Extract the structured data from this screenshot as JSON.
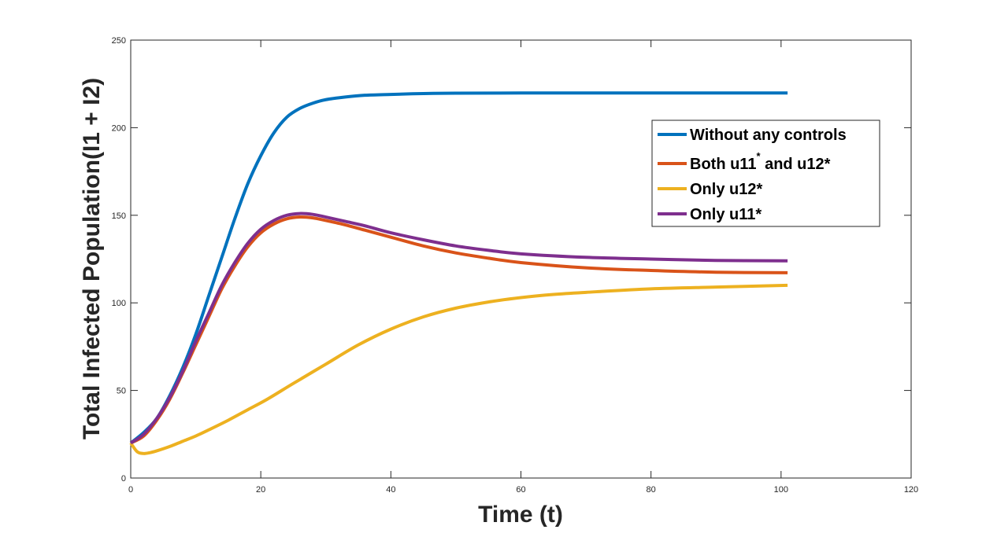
{
  "chart_data": {
    "type": "line",
    "title": "",
    "xlabel": "Time (t)",
    "ylabel": "Total Infected Population(I1 + I2)",
    "xlim": [
      0,
      120
    ],
    "ylim": [
      0,
      250
    ],
    "xticks": [
      0,
      20,
      40,
      60,
      80,
      100,
      120
    ],
    "yticks": [
      0,
      50,
      100,
      150,
      200,
      250
    ],
    "grid": false,
    "legend_position": "top-right",
    "series": [
      {
        "name": "Without any controls",
        "legend_main": "Without any controls",
        "legend_sup": "",
        "legend_rest": "",
        "color": "#0072BD",
        "x": [
          0,
          2,
          4,
          6,
          8,
          10,
          12,
          14,
          16,
          18,
          20,
          22,
          24,
          26,
          28,
          30,
          33,
          36,
          40,
          45,
          50,
          60,
          70,
          80,
          90,
          101
        ],
        "y": [
          20,
          26,
          34,
          47,
          63,
          82,
          104,
          126,
          148,
          168,
          184,
          197,
          206,
          211,
          214,
          216,
          217.5,
          218.5,
          219,
          219.5,
          219.7,
          219.8,
          219.8,
          219.8,
          219.8,
          219.8
        ]
      },
      {
        "name": "Both u11* and u12*",
        "legend_main": "Both u11",
        "legend_sup": "*",
        "legend_rest": " and u12*",
        "color": "#D95319",
        "x": [
          0,
          2,
          4,
          6,
          8,
          10,
          12,
          14,
          16,
          18,
          20,
          22,
          24,
          26,
          28,
          30,
          33,
          36,
          40,
          45,
          50,
          55,
          60,
          70,
          80,
          90,
          101
        ],
        "y": [
          20,
          24,
          33,
          45,
          60,
          76,
          92,
          108,
          121,
          132,
          140,
          145,
          148,
          149,
          148.5,
          147,
          144.5,
          141.5,
          137.5,
          132.5,
          128.5,
          125.5,
          123,
          120,
          118.5,
          117.5,
          117.2
        ]
      },
      {
        "name": "Only u12*",
        "legend_main": "Only u12*",
        "legend_sup": "",
        "legend_rest": "",
        "color": "#EDB120",
        "x": [
          0,
          1,
          2,
          3,
          4,
          6,
          8,
          10,
          12,
          15,
          18,
          21,
          25,
          30,
          35,
          40,
          45,
          50,
          55,
          60,
          65,
          70,
          80,
          90,
          101
        ],
        "y": [
          20,
          15,
          14,
          14.5,
          15.5,
          18,
          21,
          24,
          27.5,
          33,
          39,
          45,
          54,
          65,
          76,
          85,
          92,
          97,
          100.5,
          103,
          104.8,
          106,
          108,
          109,
          110
        ]
      },
      {
        "name": "Only u11*",
        "legend_main": "Only u11*",
        "legend_sup": "",
        "legend_rest": "",
        "color": "#7E2F8E",
        "x": [
          0,
          2,
          4,
          6,
          8,
          10,
          12,
          14,
          16,
          18,
          20,
          22,
          24,
          26,
          28,
          30,
          33,
          36,
          40,
          45,
          50,
          55,
          60,
          70,
          80,
          90,
          101
        ],
        "y": [
          20,
          25,
          34,
          46,
          61,
          78,
          94,
          110,
          123,
          134,
          142,
          147,
          150,
          151,
          150.5,
          149,
          146.5,
          144,
          140,
          136,
          132.5,
          130,
          128,
          126,
          125,
          124.2,
          124
        ]
      }
    ]
  }
}
